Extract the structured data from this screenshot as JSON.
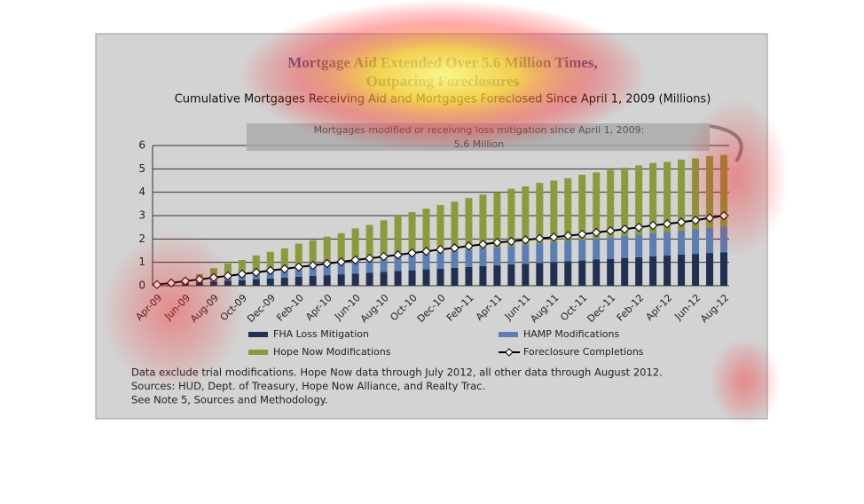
{
  "chart_data": {
    "type": "bar",
    "stacked": true,
    "title": [
      "Mortgage Aid Extended Over 5.6 Million Times,",
      "Outpacing Foreclosures"
    ],
    "subtitle": "Cumulative Mortgages Receiving Aid and Mortgages Foreclosed Since April 1, 2009 (Millions)",
    "annotation": [
      "Mortgages modified or receiving loss mitigation since April 1, 2009:",
      "5.6 Million"
    ],
    "categories": [
      "Apr-09",
      null,
      "Jun-09",
      null,
      "Aug-09",
      null,
      "Oct-09",
      null,
      "Dec-09",
      null,
      "Feb-10",
      null,
      "Apr-10",
      null,
      "Jun-10",
      null,
      "Aug-10",
      null,
      "Oct-10",
      null,
      "Dec-10",
      null,
      "Feb-11",
      null,
      "Apr-11",
      null,
      "Jun-11",
      null,
      "Aug-11",
      null,
      "Oct-11",
      null,
      "Dec-11",
      null,
      "Feb-12",
      null,
      "Apr-12",
      null,
      "Jun-12",
      null,
      "Aug-12"
    ],
    "series": [
      {
        "name": "FHA Loss Mitigation",
        "type": "bar",
        "color": "#1f3050",
        "values": [
          0.03,
          0.07,
          0.1,
          0.14,
          0.17,
          0.21,
          0.24,
          0.28,
          0.31,
          0.35,
          0.38,
          0.42,
          0.45,
          0.49,
          0.52,
          0.56,
          0.59,
          0.63,
          0.66,
          0.7,
          0.73,
          0.77,
          0.8,
          0.84,
          0.87,
          0.91,
          0.94,
          0.98,
          1.01,
          1.05,
          1.08,
          1.12,
          1.15,
          1.19,
          1.22,
          1.26,
          1.29,
          1.33,
          1.36,
          1.4,
          1.43
        ]
      },
      {
        "name": "HAMP Modifications",
        "type": "bar",
        "color": "#5b7fb5",
        "values": [
          0,
          0.01,
          0.04,
          0.08,
          0.13,
          0.18,
          0.23,
          0.28,
          0.32,
          0.36,
          0.4,
          0.44,
          0.48,
          0.52,
          0.55,
          0.58,
          0.61,
          0.63,
          0.65,
          0.67,
          0.69,
          0.71,
          0.73,
          0.75,
          0.77,
          0.79,
          0.81,
          0.83,
          0.85,
          0.87,
          0.89,
          0.91,
          0.93,
          0.95,
          0.97,
          0.99,
          1.01,
          1.03,
          1.05,
          1.07,
          1.1
        ]
      },
      {
        "name": "Hope Now Modifications",
        "type": "bar",
        "color": "#8c9a3a",
        "values": [
          0.02,
          0.07,
          0.16,
          0.28,
          0.45,
          0.56,
          0.63,
          0.74,
          0.82,
          0.89,
          1.02,
          1.09,
          1.17,
          1.24,
          1.38,
          1.46,
          1.6,
          1.74,
          1.84,
          1.93,
          2.03,
          2.12,
          2.22,
          2.31,
          2.36,
          2.45,
          2.5,
          2.59,
          2.64,
          2.68,
          2.78,
          2.82,
          2.87,
          2.91,
          2.96,
          3.0,
          3.0,
          3.04,
          3.04,
          3.08,
          3.07
        ]
      },
      {
        "name": "Foreclosure Completions",
        "type": "line",
        "color": "#000000",
        "values": [
          0.05,
          0.12,
          0.2,
          0.27,
          0.35,
          0.42,
          0.5,
          0.57,
          0.65,
          0.72,
          0.8,
          0.87,
          0.95,
          1.02,
          1.1,
          1.17,
          1.25,
          1.32,
          1.4,
          1.47,
          1.55,
          1.62,
          1.7,
          1.77,
          1.85,
          1.9,
          1.96,
          2.02,
          2.08,
          2.14,
          2.2,
          2.28,
          2.35,
          2.42,
          2.5,
          2.58,
          2.65,
          2.72,
          2.8,
          2.9,
          3.0
        ]
      }
    ],
    "ylim": [
      0,
      6
    ],
    "yticks": [
      0,
      1,
      2,
      3,
      4,
      5,
      6
    ],
    "grid": true,
    "legend": "bottom",
    "notes": [
      "Data exclude trial modifications. Hope Now data through July 2012, all other data through August 2012.",
      "Sources:  HUD, Dept. of Treasury, Hope Now Alliance, and Realty Trac.",
      "See Note 5, Sources and Methodology."
    ]
  }
}
